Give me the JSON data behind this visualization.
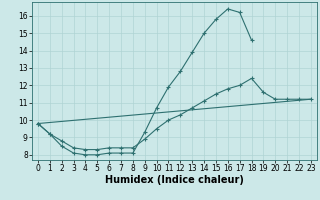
{
  "xlabel": "Humidex (Indice chaleur)",
  "background_color": "#cce8e8",
  "grid_color": "#b0d4d4",
  "line_color": "#2e7070",
  "xlim": [
    -0.5,
    23.5
  ],
  "ylim": [
    7.7,
    16.8
  ],
  "yticks": [
    8,
    9,
    10,
    11,
    12,
    13,
    14,
    15,
    16
  ],
  "xticks": [
    0,
    1,
    2,
    3,
    4,
    5,
    6,
    7,
    8,
    9,
    10,
    11,
    12,
    13,
    14,
    15,
    16,
    17,
    18,
    19,
    20,
    21,
    22,
    23
  ],
  "curve1_x": [
    0,
    1,
    2,
    3,
    4,
    5,
    6,
    7,
    8,
    9,
    10,
    11,
    12,
    13,
    14,
    15,
    16,
    17,
    18
  ],
  "curve1_y": [
    9.8,
    9.2,
    8.5,
    8.1,
    8.0,
    8.0,
    8.1,
    8.1,
    8.1,
    9.3,
    10.7,
    11.9,
    12.8,
    13.9,
    15.0,
    15.8,
    16.4,
    16.2,
    14.6
  ],
  "curve2_x": [
    0,
    1,
    2,
    3,
    4,
    5,
    6,
    7,
    8,
    9,
    10,
    11,
    12,
    13,
    14,
    15,
    16,
    17,
    18,
    19,
    20,
    21,
    22,
    23
  ],
  "curve2_y": [
    9.8,
    9.2,
    8.8,
    8.4,
    8.3,
    8.3,
    8.4,
    8.4,
    8.4,
    8.9,
    9.5,
    10.0,
    10.3,
    10.7,
    11.1,
    11.5,
    11.8,
    12.0,
    12.4,
    11.6,
    11.2,
    11.2,
    11.2,
    11.2
  ],
  "curve3_x": [
    0,
    23
  ],
  "curve3_y": [
    9.8,
    11.2
  ],
  "marker": "+",
  "markersize": 3,
  "markeredgewidth": 0.8,
  "linewidth": 0.8,
  "xlabel_fontsize": 7,
  "tick_fontsize": 5.5
}
